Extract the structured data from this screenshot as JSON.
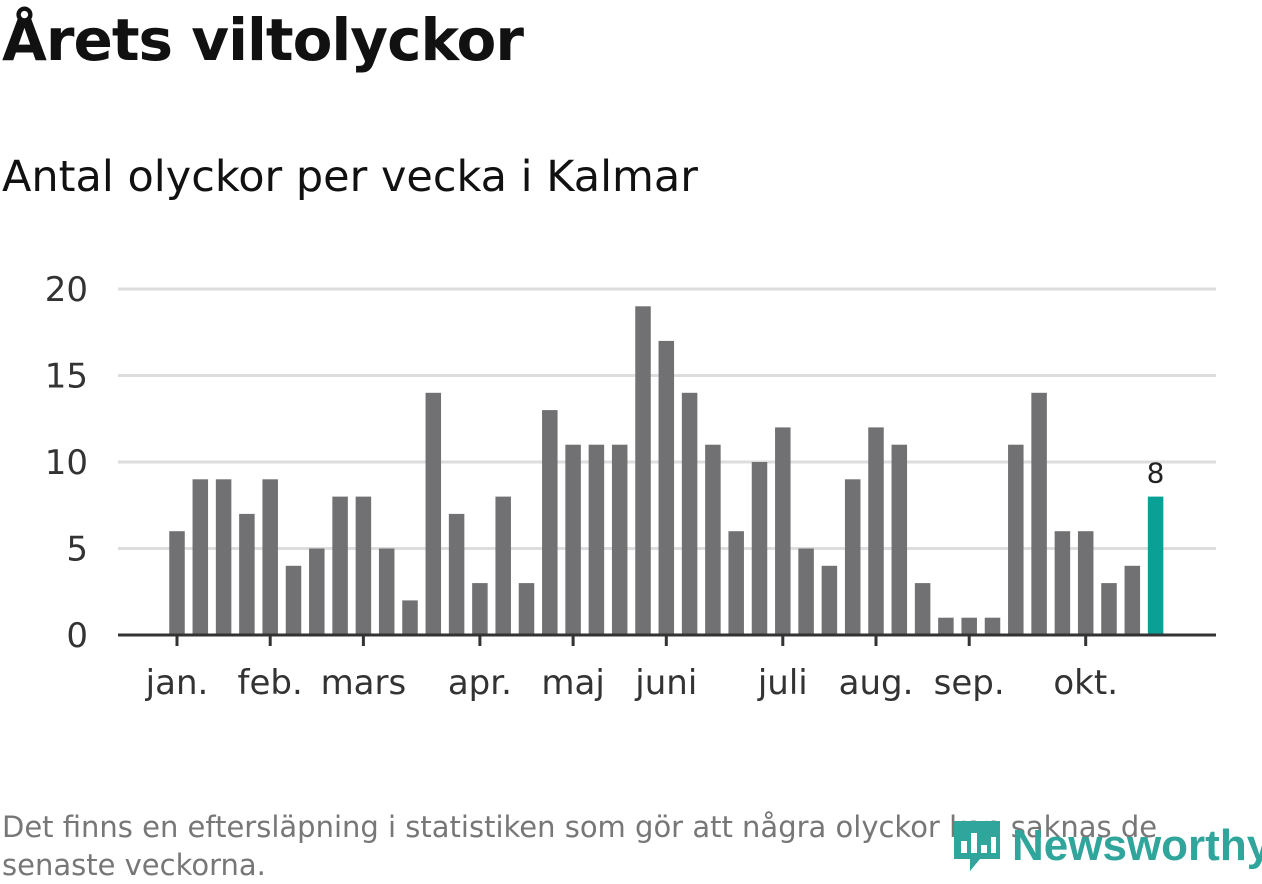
{
  "title": "Årets viltolyckor",
  "subtitle": "Antal olyckor per vecka i Kalmar",
  "footnote": "Det finns en eftersläpning i statistiken som gör att några olyckor kan saknas de senaste veckorna.",
  "brand": "Newsworthy",
  "colors": {
    "bar": "#717073",
    "highlight": "#0aa095",
    "grid": "#dddddd",
    "axis": "#333333",
    "brand": "#2fa59b"
  },
  "chart_data": {
    "type": "bar",
    "title": "Antal olyckor per vecka i Kalmar",
    "xlabel": "",
    "ylabel": "",
    "ylim": [
      0,
      20
    ],
    "yticks": [
      0,
      5,
      10,
      15,
      20
    ],
    "values": [
      6,
      9,
      9,
      7,
      9,
      4,
      5,
      8,
      8,
      5,
      2,
      14,
      7,
      3,
      8,
      3,
      13,
      11,
      11,
      11,
      19,
      17,
      14,
      11,
      6,
      10,
      12,
      5,
      4,
      9,
      12,
      11,
      3,
      1,
      1,
      1,
      11,
      14,
      6,
      6,
      3,
      4,
      8
    ],
    "month_ticks": [
      {
        "label": "jan.",
        "week_index": 0
      },
      {
        "label": "feb.",
        "week_index": 4
      },
      {
        "label": "mars",
        "week_index": 8
      },
      {
        "label": "apr.",
        "week_index": 13
      },
      {
        "label": "maj",
        "week_index": 17
      },
      {
        "label": "juni",
        "week_index": 21
      },
      {
        "label": "juli",
        "week_index": 26
      },
      {
        "label": "aug.",
        "week_index": 30
      },
      {
        "label": "sep.",
        "week_index": 34
      },
      {
        "label": "okt.",
        "week_index": 39
      }
    ],
    "highlight": {
      "week_index": 42,
      "label": "8"
    },
    "grid": true
  }
}
